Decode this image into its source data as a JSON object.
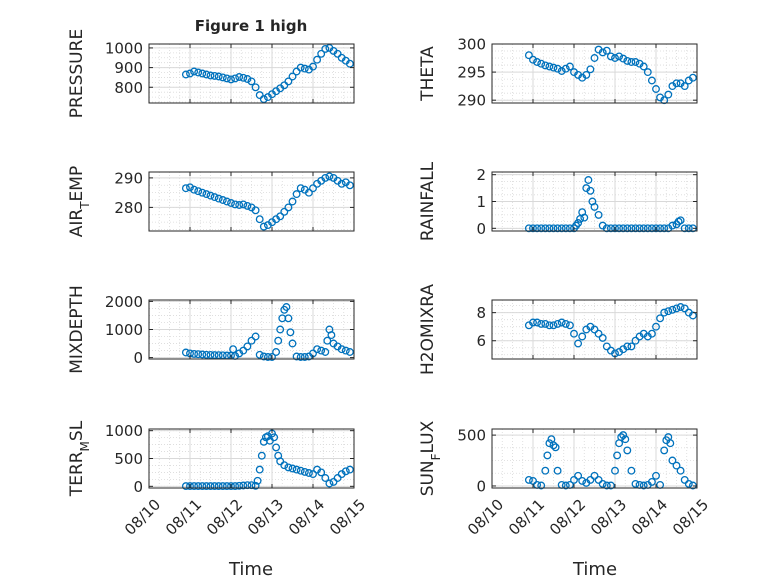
{
  "figure_title": "Figure 1 high",
  "x_axis": {
    "xlabel": "Time",
    "ticks": [
      "08/10",
      "08/11",
      "08/12",
      "08/13",
      "08/14",
      "08/15"
    ],
    "range_days": [
      10,
      15
    ],
    "tick_days": [
      10,
      11,
      12,
      13,
      14,
      15
    ]
  },
  "colors": {
    "marker": "#0072BD",
    "axis": "#262626",
    "grid": "#d9d9d9",
    "background": "#ffffff"
  },
  "grid": true,
  "chart_data": [
    {
      "type": "scatter",
      "ylabel": "PRESSURE",
      "ylim": [
        720,
        1020
      ],
      "yticks": [
        800,
        900,
        1000
      ],
      "x": [
        10.9,
        11.0,
        11.1,
        11.2,
        11.3,
        11.4,
        11.5,
        11.6,
        11.7,
        11.8,
        11.9,
        12.0,
        12.1,
        12.2,
        12.3,
        12.4,
        12.5,
        12.6,
        12.7,
        12.8,
        12.9,
        13.0,
        13.1,
        13.2,
        13.3,
        13.4,
        13.5,
        13.6,
        13.7,
        13.8,
        13.9,
        14.0,
        14.1,
        14.2,
        14.3,
        14.4,
        14.5,
        14.6,
        14.7,
        14.8,
        14.9
      ],
      "y": [
        865,
        870,
        880,
        875,
        870,
        865,
        860,
        858,
        855,
        850,
        845,
        840,
        845,
        852,
        848,
        842,
        830,
        800,
        760,
        740,
        750,
        765,
        780,
        795,
        810,
        830,
        855,
        880,
        900,
        895,
        890,
        905,
        940,
        970,
        995,
        1000,
        985,
        970,
        950,
        935,
        920
      ]
    },
    {
      "type": "scatter",
      "ylabel": "THETA",
      "ylim": [
        289.5,
        300
      ],
      "yticks": [
        290,
        295,
        300
      ],
      "x": [
        10.9,
        11.0,
        11.1,
        11.2,
        11.3,
        11.4,
        11.5,
        11.6,
        11.7,
        11.8,
        11.9,
        12.0,
        12.1,
        12.2,
        12.3,
        12.4,
        12.5,
        12.6,
        12.7,
        12.8,
        12.9,
        13.0,
        13.1,
        13.2,
        13.3,
        13.4,
        13.5,
        13.6,
        13.7,
        13.8,
        13.9,
        14.0,
        14.1,
        14.2,
        14.3,
        14.4,
        14.5,
        14.6,
        14.7,
        14.8,
        14.9
      ],
      "y": [
        298,
        297.2,
        296.8,
        296.5,
        296.2,
        296,
        295.8,
        295.6,
        295.2,
        295.6,
        296,
        295,
        294.5,
        294,
        294.5,
        295.5,
        297.5,
        299,
        298.5,
        298.8,
        297.8,
        297.5,
        297.8,
        297.4,
        297,
        296.8,
        296.8,
        296.5,
        296,
        295,
        293.5,
        292,
        290.5,
        290,
        291,
        292.5,
        293,
        293,
        292.5,
        293.5,
        294
      ]
    },
    {
      "type": "scatter",
      "ylabel": "AIR_TEMP",
      "ylim": [
        272,
        292
      ],
      "yticks": [
        280,
        290
      ],
      "x": [
        10.9,
        11.0,
        11.1,
        11.2,
        11.3,
        11.4,
        11.5,
        11.6,
        11.7,
        11.8,
        11.9,
        12.0,
        12.1,
        12.2,
        12.3,
        12.4,
        12.5,
        12.6,
        12.7,
        12.8,
        12.9,
        13.0,
        13.1,
        13.2,
        13.3,
        13.4,
        13.5,
        13.6,
        13.7,
        13.8,
        13.9,
        14.0,
        14.1,
        14.2,
        14.3,
        14.4,
        14.5,
        14.6,
        14.7,
        14.8,
        14.9
      ],
      "y": [
        286.5,
        286.8,
        286,
        285.5,
        285,
        284.5,
        284,
        283.5,
        283,
        282.5,
        282,
        281.5,
        281,
        280.8,
        281,
        280.5,
        280,
        279,
        276,
        273.5,
        274,
        275,
        276,
        277,
        278.5,
        280,
        282,
        284.5,
        286.5,
        286,
        285,
        286.5,
        288,
        289,
        290,
        290.5,
        290,
        289,
        288,
        288.5,
        287.5
      ]
    },
    {
      "type": "scatter",
      "ylabel": "RAINFALL",
      "ylim": [
        -0.1,
        2.1
      ],
      "yticks": [
        0,
        1,
        2
      ],
      "x": [
        10.9,
        11.0,
        11.1,
        11.2,
        11.3,
        11.4,
        11.5,
        11.6,
        11.7,
        11.8,
        11.9,
        12.0,
        12.05,
        12.1,
        12.15,
        12.2,
        12.25,
        12.3,
        12.35,
        12.4,
        12.45,
        12.5,
        12.6,
        12.7,
        12.8,
        12.9,
        13.0,
        13.1,
        13.2,
        13.3,
        13.4,
        13.5,
        13.6,
        13.7,
        13.8,
        13.9,
        14.0,
        14.1,
        14.2,
        14.3,
        14.4,
        14.5,
        14.55,
        14.6,
        14.7,
        14.8,
        14.9
      ],
      "y": [
        0,
        0,
        0,
        0,
        0,
        0,
        0,
        0,
        0,
        0,
        0,
        0,
        0.1,
        0.2,
        0.35,
        0.6,
        0.4,
        1.5,
        1.8,
        1.4,
        1.0,
        0.8,
        0.5,
        0.1,
        0,
        0,
        0,
        0,
        0,
        0,
        0,
        0,
        0,
        0,
        0,
        0,
        0,
        0,
        0,
        0,
        0.1,
        0.15,
        0.25,
        0.3,
        0,
        0,
        0
      ]
    },
    {
      "type": "scatter",
      "ylabel": "MIXDEPTH",
      "ylim": [
        -50,
        2050
      ],
      "yticks": [
        0,
        1000,
        2000
      ],
      "x": [
        10.9,
        11.0,
        11.1,
        11.2,
        11.3,
        11.4,
        11.5,
        11.6,
        11.7,
        11.8,
        11.9,
        12.0,
        12.05,
        12.1,
        12.2,
        12.3,
        12.4,
        12.5,
        12.6,
        12.7,
        12.8,
        12.9,
        13.0,
        13.1,
        13.15,
        13.2,
        13.25,
        13.3,
        13.35,
        13.4,
        13.45,
        13.5,
        13.6,
        13.7,
        13.8,
        13.9,
        14.0,
        14.1,
        14.2,
        14.3,
        14.35,
        14.4,
        14.45,
        14.5,
        14.6,
        14.7,
        14.8,
        14.9
      ],
      "y": [
        180,
        150,
        130,
        120,
        110,
        100,
        95,
        90,
        85,
        80,
        75,
        70,
        300,
        60,
        150,
        250,
        400,
        600,
        750,
        100,
        40,
        20,
        20,
        200,
        600,
        1000,
        1400,
        1700,
        1800,
        1400,
        900,
        500,
        40,
        20,
        20,
        40,
        150,
        300,
        250,
        200,
        600,
        1000,
        800,
        500,
        400,
        300,
        250,
        200
      ]
    },
    {
      "type": "scatter",
      "ylabel": "H2OMIXRA",
      "ylim": [
        4.7,
        8.9
      ],
      "yticks": [
        6,
        8
      ],
      "x": [
        10.9,
        11.0,
        11.1,
        11.2,
        11.3,
        11.4,
        11.5,
        11.6,
        11.7,
        11.8,
        11.9,
        12.0,
        12.1,
        12.2,
        12.3,
        12.4,
        12.5,
        12.6,
        12.7,
        12.8,
        12.9,
        13.0,
        13.1,
        13.2,
        13.3,
        13.4,
        13.5,
        13.6,
        13.7,
        13.8,
        13.9,
        14.0,
        14.1,
        14.2,
        14.3,
        14.4,
        14.5,
        14.6,
        14.7,
        14.8,
        14.9
      ],
      "y": [
        7.1,
        7.3,
        7.3,
        7.2,
        7.2,
        7.1,
        7.1,
        7.2,
        7.3,
        7.2,
        7.1,
        6.5,
        5.8,
        6.3,
        6.8,
        7.0,
        6.8,
        6.5,
        6.2,
        5.6,
        5.3,
        5.1,
        5.2,
        5.4,
        5.6,
        5.6,
        6.0,
        6.3,
        6.5,
        6.3,
        6.5,
        7.0,
        7.6,
        8.0,
        8.1,
        8.2,
        8.3,
        8.4,
        8.3,
        8.0,
        7.8
      ]
    },
    {
      "type": "scatter",
      "ylabel": "TERR_MSL",
      "ylim": [
        -30,
        1030
      ],
      "yticks": [
        0,
        500,
        1000
      ],
      "x": [
        10.9,
        11.0,
        11.1,
        11.2,
        11.3,
        11.4,
        11.5,
        11.6,
        11.7,
        11.8,
        11.9,
        12.0,
        12.1,
        12.2,
        12.3,
        12.4,
        12.5,
        12.6,
        12.65,
        12.7,
        12.75,
        12.8,
        12.85,
        12.9,
        12.95,
        13.0,
        13.05,
        13.1,
        13.15,
        13.2,
        13.3,
        13.4,
        13.5,
        13.6,
        13.7,
        13.8,
        13.9,
        14.0,
        14.1,
        14.2,
        14.3,
        14.4,
        14.5,
        14.6,
        14.7,
        14.8,
        14.9
      ],
      "y": [
        5,
        5,
        5,
        5,
        5,
        5,
        5,
        5,
        5,
        5,
        5,
        5,
        5,
        10,
        15,
        20,
        20,
        10,
        100,
        300,
        550,
        800,
        880,
        900,
        820,
        950,
        880,
        700,
        550,
        450,
        380,
        340,
        320,
        300,
        280,
        260,
        240,
        220,
        300,
        250,
        150,
        50,
        80,
        150,
        220,
        270,
        300
      ]
    },
    {
      "type": "scatter",
      "ylabel": "SUN_FLUX",
      "ylim": [
        -20,
        560
      ],
      "yticks": [
        0,
        500
      ],
      "x": [
        10.9,
        11.0,
        11.1,
        11.2,
        11.3,
        11.35,
        11.4,
        11.45,
        11.5,
        11.55,
        11.6,
        11.7,
        11.8,
        11.9,
        12.0,
        12.1,
        12.2,
        12.3,
        12.4,
        12.5,
        12.6,
        12.7,
        12.8,
        12.9,
        13.0,
        13.05,
        13.1,
        13.15,
        13.2,
        13.25,
        13.3,
        13.4,
        13.5,
        13.6,
        13.7,
        13.8,
        13.9,
        14.0,
        14.1,
        14.2,
        14.25,
        14.3,
        14.35,
        14.4,
        14.5,
        14.6,
        14.7,
        14.8,
        14.9
      ],
      "y": [
        60,
        50,
        10,
        5,
        150,
        300,
        420,
        460,
        400,
        380,
        150,
        10,
        5,
        10,
        60,
        100,
        50,
        30,
        60,
        100,
        60,
        20,
        5,
        5,
        150,
        300,
        420,
        480,
        500,
        460,
        350,
        150,
        20,
        10,
        5,
        10,
        40,
        100,
        10,
        350,
        450,
        480,
        420,
        250,
        200,
        150,
        60,
        20,
        5
      ]
    }
  ]
}
